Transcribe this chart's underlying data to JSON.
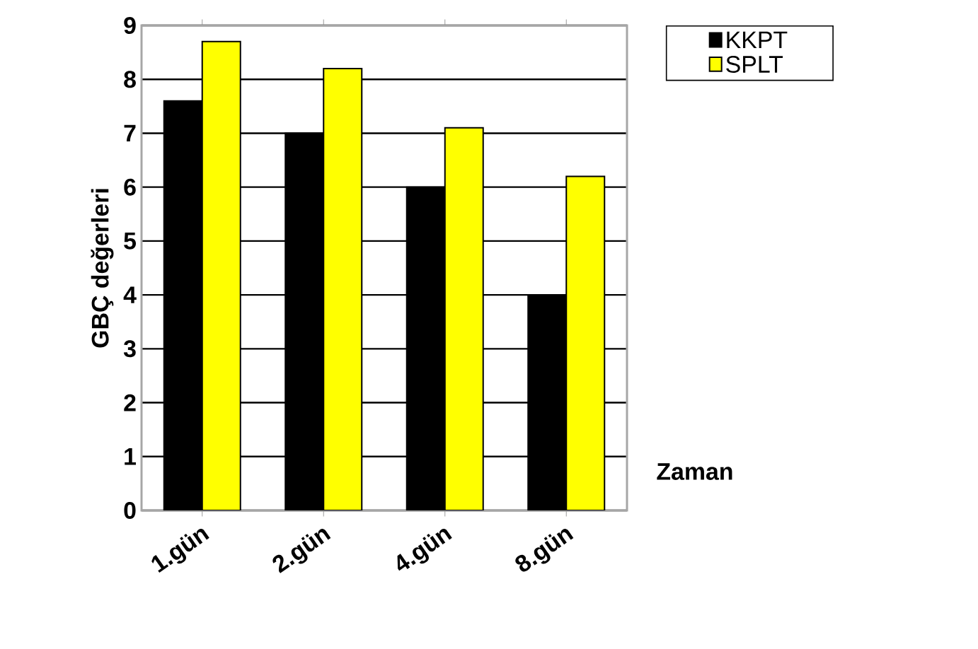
{
  "chart_data": {
    "type": "bar",
    "xlabel": "Zaman",
    "ylabel": "GBÇ değerleri",
    "categories": [
      "1.gün",
      "2.gün",
      "4.gün",
      "8.gün"
    ],
    "series": [
      {
        "name": "KKPT",
        "color": "#000000",
        "values": [
          7.6,
          7.0,
          6.0,
          4.0
        ]
      },
      {
        "name": "SPLT",
        "color": "#ffff00",
        "values": [
          8.7,
          8.2,
          7.1,
          6.2
        ]
      }
    ],
    "ylim": [
      0,
      9
    ],
    "yticks": [
      0,
      1,
      2,
      3,
      4,
      5,
      6,
      7,
      8,
      9
    ],
    "grid": "y",
    "legend": "top right"
  }
}
